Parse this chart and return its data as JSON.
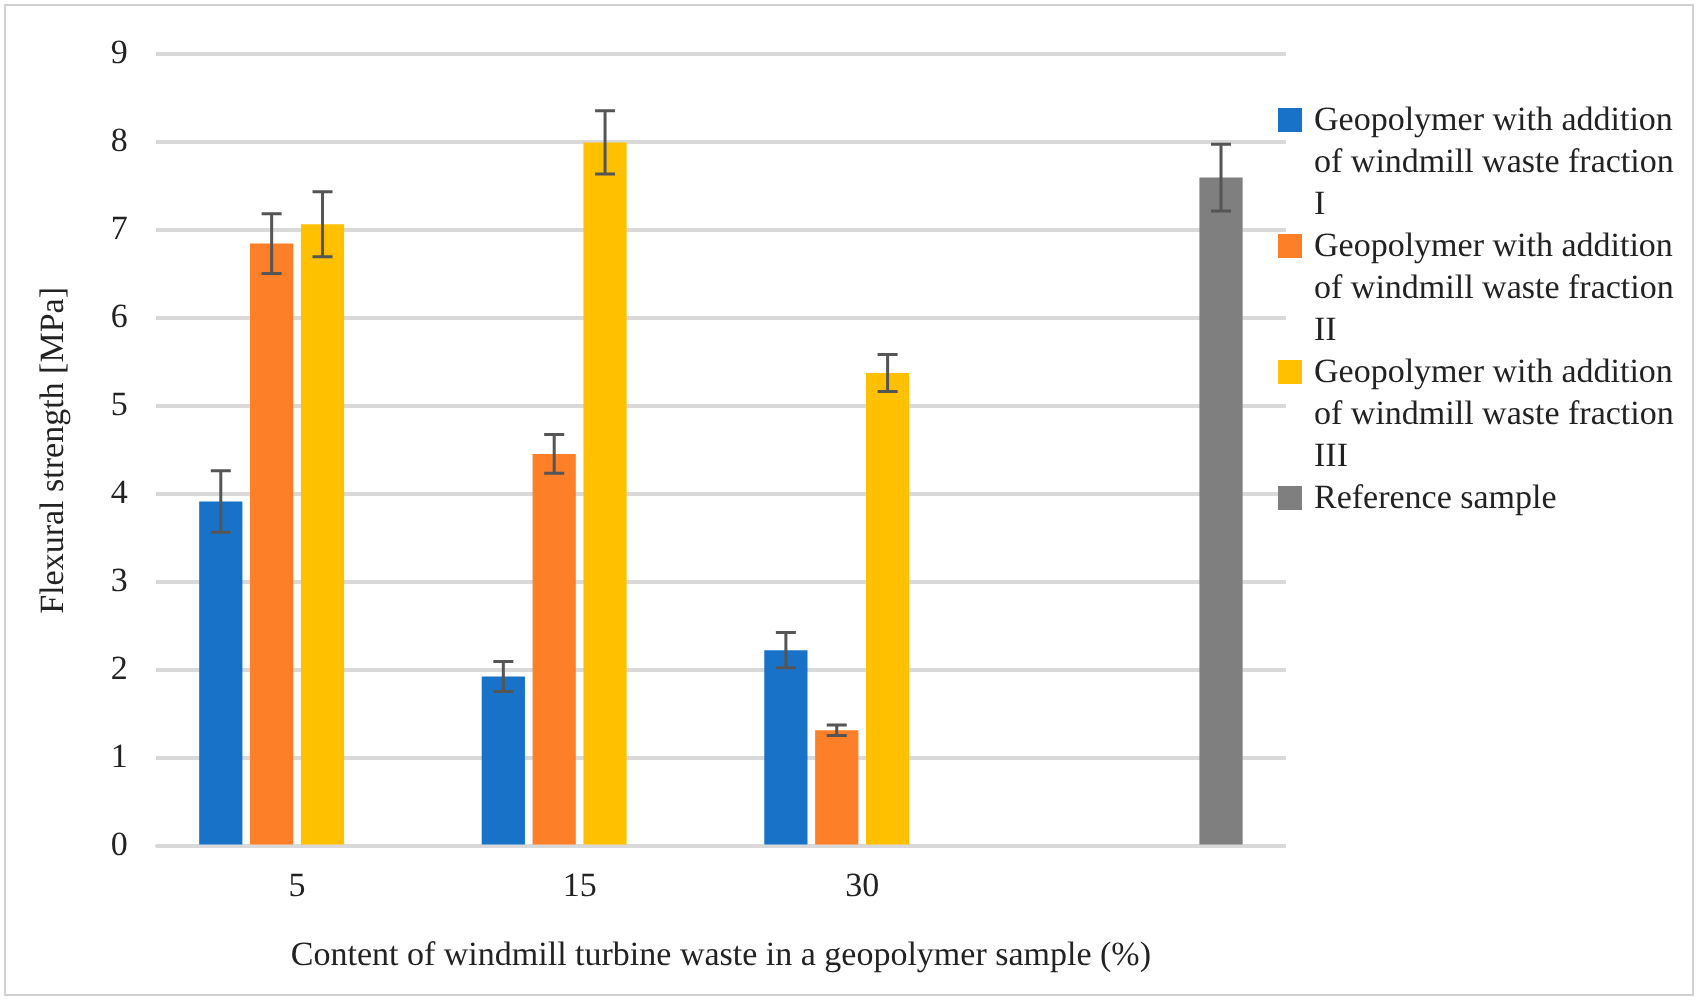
{
  "chart_data": {
    "type": "bar",
    "xlabel": "Content of windmill turbine waste in a geopolymer sample (%)",
    "ylabel": "Flexural strength [MPa]",
    "categories": [
      "5",
      "15",
      "30",
      null
    ],
    "series": [
      {
        "name": "Geopolymer with addition of windmill waste fraction I",
        "color": "#1873c8",
        "values": [
          3.92,
          1.93,
          2.23,
          null
        ],
        "errors": [
          0.35,
          0.17,
          0.2,
          null
        ]
      },
      {
        "name": "Geopolymer with addition of windmill waste fraction II",
        "color": "#fd7f28",
        "values": [
          6.85,
          4.46,
          1.32,
          null
        ],
        "errors": [
          0.34,
          0.22,
          0.06,
          null
        ]
      },
      {
        "name": "Geopolymer with addition of windmill waste fraction III",
        "color": "#ffc000",
        "values": [
          7.07,
          8.0,
          5.38,
          null
        ],
        "errors": [
          0.37,
          0.36,
          0.21,
          null
        ]
      },
      {
        "name": "Reference sample",
        "color": "#7f7f7f",
        "values": [
          null,
          null,
          null,
          7.6
        ],
        "errors": [
          null,
          null,
          null,
          0.38
        ]
      }
    ],
    "ylim": [
      0,
      9
    ],
    "yticks": [
      0,
      1,
      2,
      3,
      4,
      5,
      6,
      7,
      8,
      9
    ],
    "grid": "y",
    "legend": "right"
  }
}
